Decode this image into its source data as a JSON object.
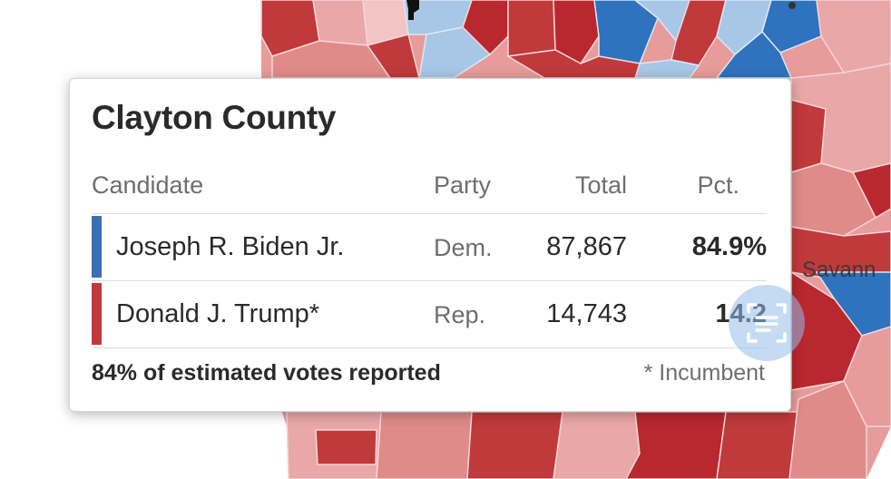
{
  "map": {
    "city_label": "Savann"
  },
  "colors": {
    "dem": "#3b6fb6",
    "rep": "#c0393b",
    "map_dark_red": "#b8282e",
    "map_light_red": "#e79b9b",
    "map_dark_blue": "#2f72bd",
    "map_light_blue": "#a8c6e6"
  },
  "tooltip": {
    "title": "Clayton County",
    "headers": {
      "candidate": "Candidate",
      "party": "Party",
      "total": "Total",
      "pct": "Pct."
    },
    "rows": [
      {
        "name": "Joseph R. Biden Jr.",
        "party": "Dem.",
        "total": "87,867",
        "pct": "84.9%",
        "color": "#3b6fb6"
      },
      {
        "name": "Donald J. Trump*",
        "party": "Rep.",
        "total": "14,743",
        "pct": "14.2",
        "color": "#c0393b"
      }
    ],
    "footer_reported": "84% of estimated votes reported",
    "footer_note": "* Incumbent"
  },
  "overlay": {
    "icon": "text-scan-icon"
  }
}
